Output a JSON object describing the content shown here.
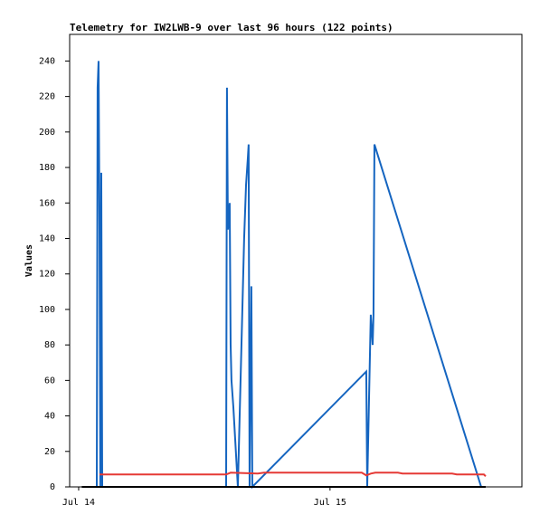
{
  "chart_data": {
    "type": "line",
    "title": "Telemetry for IW2LWB-9 over last 96 hours (122 points)",
    "y_label": "Values",
    "xlim": [
      -0.86,
      42.32
    ],
    "xticks": [
      {
        "value": 0,
        "label": "Jul 14"
      },
      {
        "value": 24,
        "label": "Jul 15"
      }
    ],
    "ylim": [
      0,
      255
    ],
    "yticks": [
      0,
      20,
      40,
      60,
      80,
      100,
      120,
      140,
      160,
      180,
      200,
      220,
      240
    ],
    "grid": false,
    "series": [
      {
        "color": "#1565c0",
        "x": [
          1.73,
          1.81,
          1.9,
          1.99,
          2.07,
          2.16,
          2.25,
          14.08,
          14.16,
          14.25,
          14.42,
          14.51,
          14.59,
          14.77,
          15.2,
          15.63,
          15.8,
          15.98,
          16.15,
          16.23,
          16.32,
          16.49,
          16.58,
          27.46,
          27.55,
          27.89,
          28.07,
          28.15,
          28.24,
          38.43,
          38.86
        ],
        "values": [
          0,
          225,
          240,
          145,
          0,
          177,
          0,
          0,
          225,
          145,
          160,
          80,
          60,
          45,
          0,
          100,
          140,
          170,
          185,
          193,
          0,
          113,
          0,
          65,
          0,
          97,
          80,
          97,
          193,
          0,
          0
        ]
      },
      {
        "color": "#e53935",
        "x": [
          1.99,
          14.08,
          14.51,
          17.1,
          17.7,
          27.03,
          27.46,
          27.89,
          28.32,
          30.48,
          30.92,
          35.66,
          36.1,
          38.69,
          38.86
        ],
        "values": [
          7,
          7,
          8,
          7.5,
          8,
          8,
          6.5,
          7.5,
          8,
          8,
          7.5,
          7.5,
          7,
          7,
          6
        ]
      },
      {
        "color": "#000000",
        "x": [
          0.3,
          38.86
        ],
        "values": [
          0,
          0
        ]
      }
    ]
  }
}
